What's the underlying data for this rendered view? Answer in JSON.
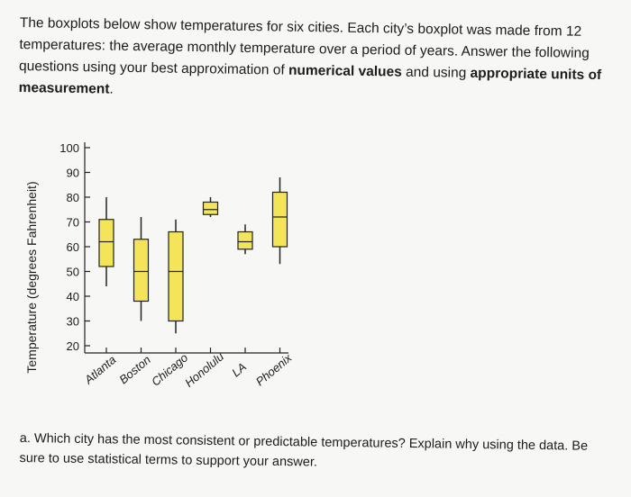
{
  "intro": {
    "part1": "The boxplots below show temperatures for six cities. Each city’s boxplot was made from 12 temperatures: the average monthly temperature over a period of years. Answer the following questions using your best approximation of ",
    "bold1": "numerical values",
    "part2": " and using ",
    "bold2": "appropriate units of measurement",
    "part3": "."
  },
  "chart_data": {
    "type": "boxplot",
    "ylabel": "Temperature (degrees Fahrenheit)",
    "ylim": [
      15,
      105
    ],
    "yticks": [
      20,
      30,
      40,
      50,
      60,
      70,
      80,
      90,
      100
    ],
    "categories": [
      "Atlanta",
      "Boston",
      "Chicago",
      "Honolulu",
      "LA",
      "Phoenix"
    ],
    "box_color": "#f3e45a",
    "series": [
      {
        "name": "Atlanta",
        "min": 44,
        "q1": 52,
        "median": 62,
        "q3": 71,
        "max": 80
      },
      {
        "name": "Boston",
        "min": 30,
        "q1": 38,
        "median": 50,
        "q3": 63,
        "max": 72
      },
      {
        "name": "Chicago",
        "min": 25,
        "q1": 30,
        "median": 50,
        "q3": 66,
        "max": 71
      },
      {
        "name": "Honolulu",
        "min": 72,
        "q1": 73,
        "median": 75,
        "q3": 78,
        "max": 80
      },
      {
        "name": "LA",
        "min": 57,
        "q1": 59,
        "median": 62,
        "q3": 66,
        "max": 69
      },
      {
        "name": "Phoenix",
        "min": 53,
        "q1": 60,
        "median": 72,
        "q3": 82,
        "max": 88
      }
    ]
  },
  "question": {
    "label": "a.",
    "text": "Which city has the most consistent or predictable temperatures? Explain why using the data. Be sure to use statistical terms to support your answer."
  }
}
